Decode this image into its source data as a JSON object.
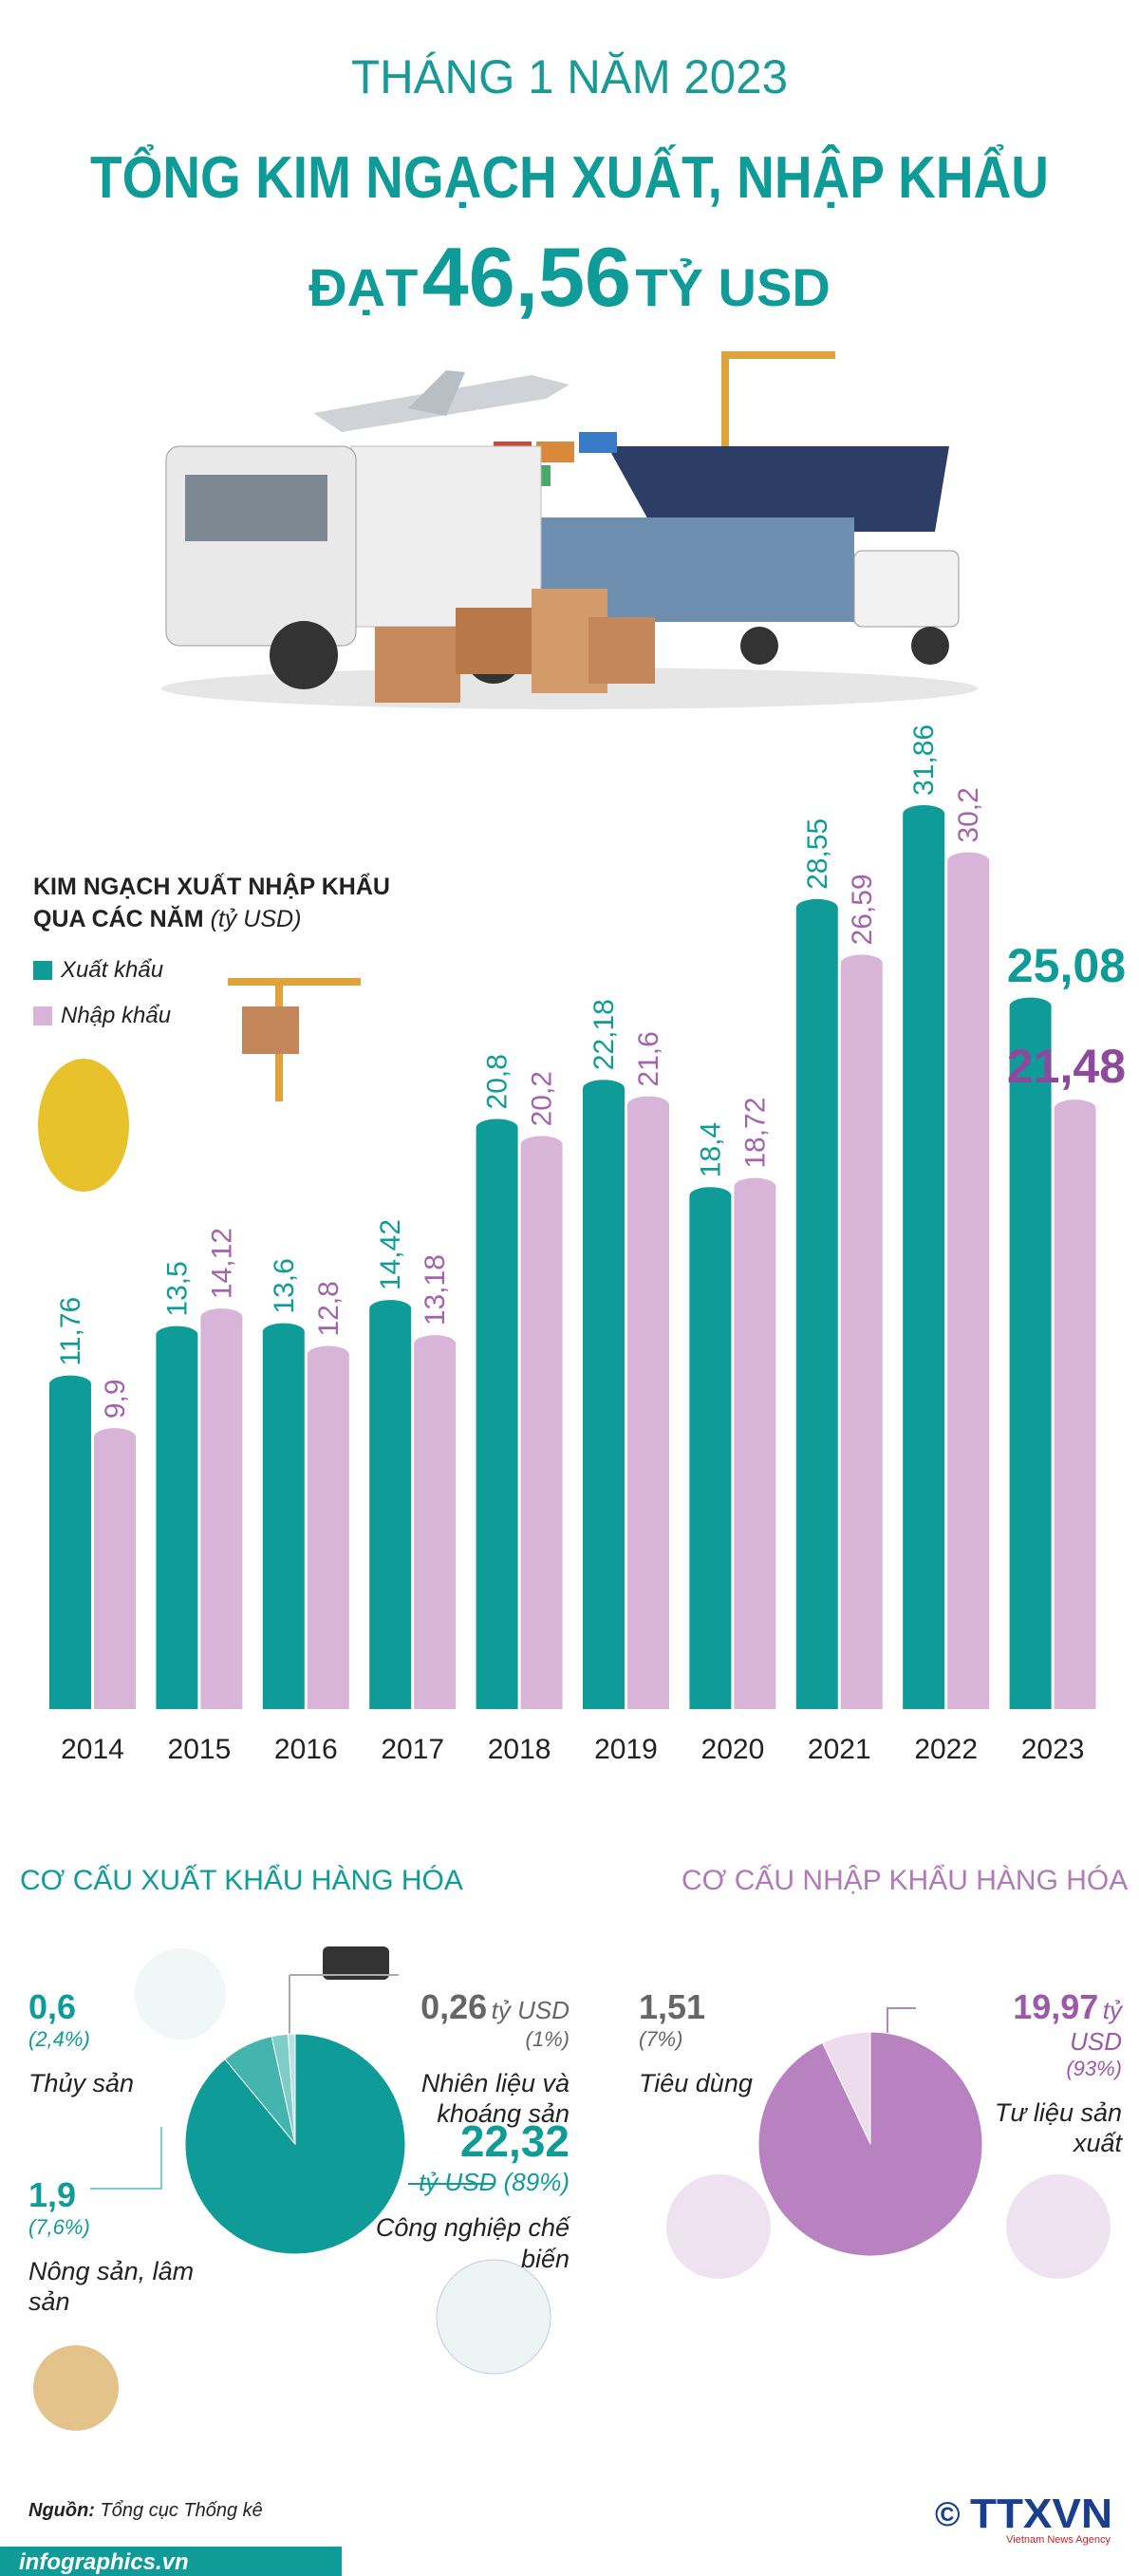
{
  "header": {
    "line1": "THÁNG 1 NĂM 2023",
    "line2": "TỔNG KIM NGẠCH XUẤT, NHẬP KHẨU",
    "line3_prefix": "ĐẠT",
    "total": "46,56",
    "line3_suffix": "TỶ USD"
  },
  "chart_data": [
    {
      "type": "bar",
      "title": "KIM NGẠCH XUẤT NHẬP KHẨU QUA CÁC NĂM",
      "unit": "(tỷ USD)",
      "categories": [
        "2014",
        "2015",
        "2016",
        "2017",
        "2018",
        "2019",
        "2020",
        "2021",
        "2022",
        "2023"
      ],
      "series": [
        {
          "name": "Xuất khẩu",
          "color": "#0f9c98",
          "values": [
            11.76,
            13.5,
            13.6,
            14.42,
            20.8,
            22.18,
            18.4,
            28.55,
            31.86,
            25.08
          ],
          "value_labels": [
            "11,76",
            "13,5",
            "13,6",
            "14,42",
            "20,8",
            "22,18",
            "18,4",
            "28,55",
            "31,86",
            "25,08"
          ]
        },
        {
          "name": "Nhập khẩu",
          "color": "#d8b4d8",
          "values": [
            9.9,
            14.12,
            12.8,
            13.18,
            20.2,
            21.6,
            18.72,
            26.59,
            30.2,
            21.48
          ],
          "value_labels": [
            "9,9",
            "14,12",
            "12,8",
            "13,18",
            "20,2",
            "21,6",
            "18,72",
            "26,59",
            "30,2",
            "21,48"
          ]
        }
      ]
    },
    {
      "type": "pie",
      "title": "CƠ CẤU XUẤT KHẨU HÀNG HÓA",
      "unit": "tỷ USD",
      "categories": [
        "Thủy sản",
        "Nông sản, lâm sản",
        "Công nghiệp chế biến",
        "Nhiên liệu và khoáng sản"
      ],
      "values": [
        0.6,
        1.9,
        22.32,
        0.26
      ],
      "value_labels": [
        "0,6",
        "1,9",
        "22,32",
        "0,26"
      ],
      "percent_labels": [
        "(2,4%)",
        "(7,6%)",
        "(89%)",
        "(1%)"
      ],
      "colors": [
        "#7fcdc8",
        "#45b3ae",
        "#0f9c98",
        "#b9e2df"
      ]
    },
    {
      "type": "pie",
      "title": "CƠ CẤU NHẬP KHẨU HÀNG HÓA",
      "unit": "tỷ USD",
      "categories": [
        "Tiêu dùng",
        "Tư liệu sản xuất"
      ],
      "values": [
        1.51,
        19.97
      ],
      "value_labels": [
        "1,51",
        "19,97"
      ],
      "percent_labels": [
        "(7%)",
        "(93%)"
      ],
      "colors": [
        "#ecdcee",
        "#b882c0"
      ]
    }
  ],
  "footer": {
    "source_label": "Nguồn:",
    "source": "Tổng cục Thống kê",
    "website": "infographics.vn",
    "copyright": "©",
    "logo": "TTXVN",
    "logo_sub": "Vietnam News Agency"
  }
}
